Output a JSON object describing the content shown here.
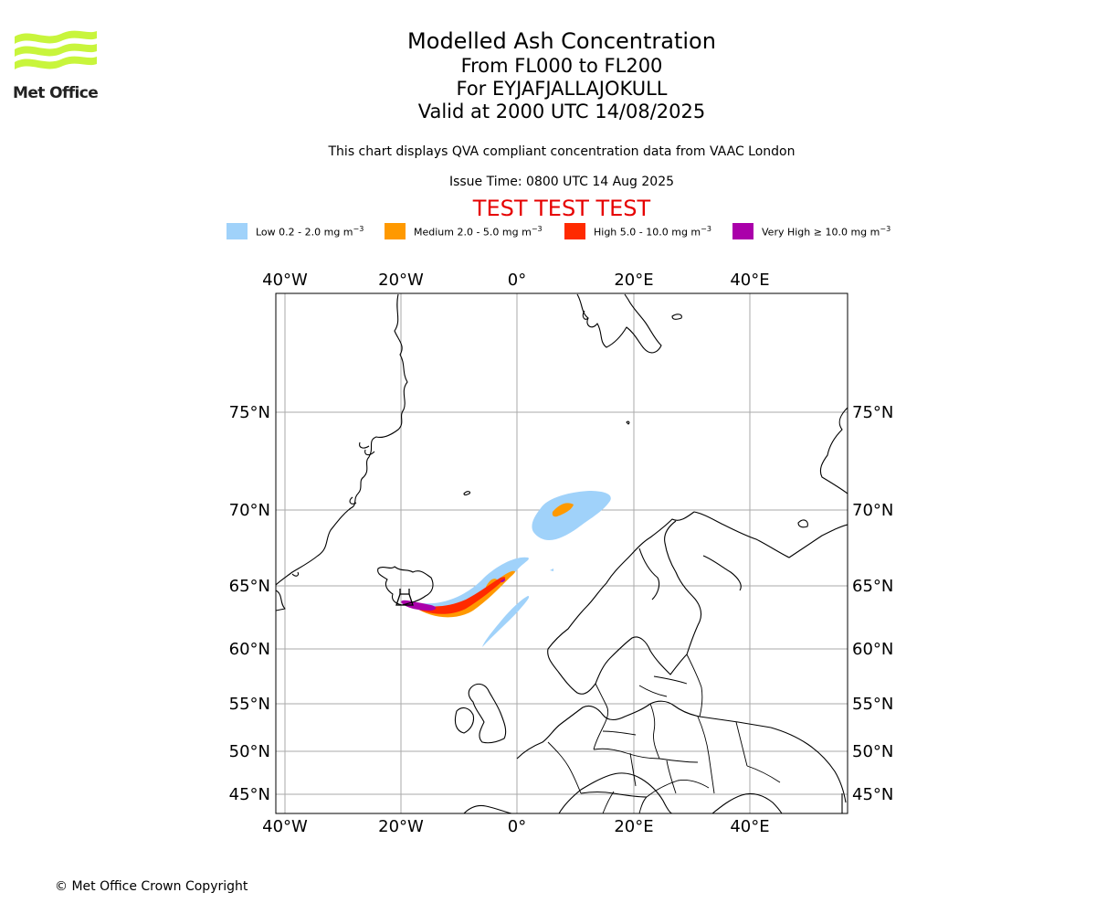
{
  "header": {
    "logo_text": "Met Office",
    "title": "Modelled Ash Concentration",
    "flight_levels": "From FL000 to FL200",
    "volcano": "For EYJAFJALLAJOKULL",
    "valid_time": "Valid at 2000 UTC 14/08/2025",
    "description": "This chart displays QVA compliant concentration data from VAAC London",
    "issue_time": "Issue Time: 0800 UTC 14 Aug 2025",
    "test_banner": "TEST TEST TEST"
  },
  "legend": [
    {
      "label": "Low 0.2 - 2.0 mg m",
      "unit_exp": "−3",
      "color": "#a0d2fa"
    },
    {
      "label": "Medium 2.0 - 5.0 mg m",
      "unit_exp": "−3",
      "color": "#ff9900"
    },
    {
      "label": "High 5.0 - 10.0 mg m",
      "unit_exp": "−3",
      "color": "#ff2a00"
    },
    {
      "label": "Very High  ≥  10.0 mg m",
      "unit_exp": "−3",
      "color": "#aa00aa"
    }
  ],
  "map": {
    "lon_labels": [
      "40°W",
      "20°W",
      "0°",
      "20°E",
      "40°E"
    ],
    "lat_labels": [
      "75°N",
      "70°N",
      "65°N",
      "60°N",
      "55°N",
      "50°N",
      "45°N"
    ],
    "gridline_color": "#aaaaaa",
    "coastline_color": "#000000",
    "volcano_marker": "volcano-icon"
  },
  "footer": {
    "copyright": "© Met Office Crown Copyright"
  }
}
